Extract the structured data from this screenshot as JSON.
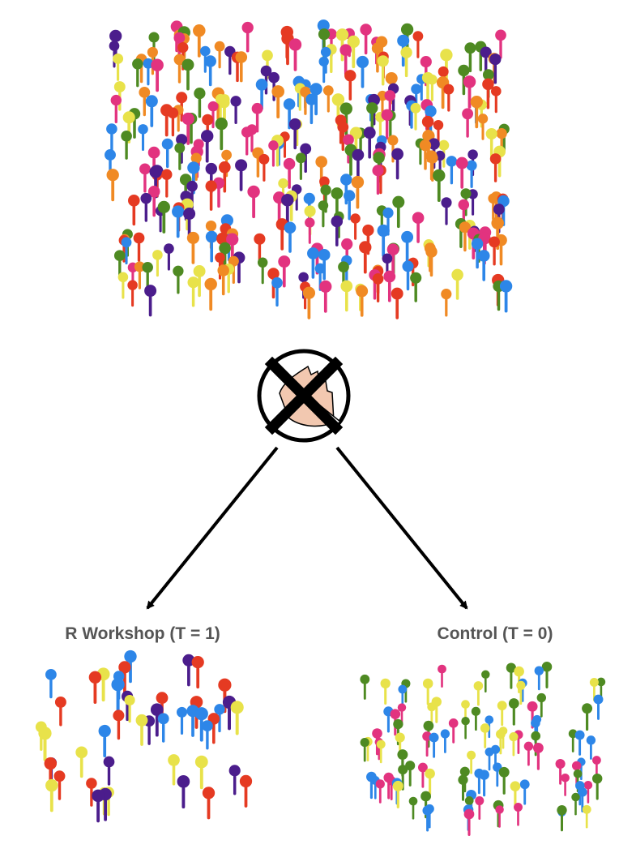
{
  "diagram": {
    "groups": [
      {
        "id": "treatment",
        "label": "R Workshop (T = 1)"
      },
      {
        "id": "control",
        "label": "Control (T = 0)"
      }
    ],
    "icons": {
      "selection": "crossed-out-hand-icon",
      "person": "stick-figure-icon"
    },
    "colors": {
      "arrow": "#000000",
      "label": "#555555",
      "population": [
        "#2d86e8",
        "#e8e24a",
        "#e2337f",
        "#e53a22",
        "#4b1d8c",
        "#f08a24",
        "#4e8a22"
      ],
      "treatment": [
        "#2d86e8",
        "#e8e24a",
        "#e53a22",
        "#4b1d8c"
      ],
      "control": [
        "#2d86e8",
        "#e8e24a",
        "#e2337f",
        "#4e8a22"
      ]
    }
  }
}
